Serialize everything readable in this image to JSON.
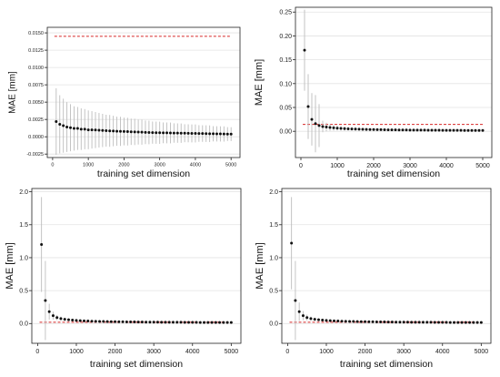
{
  "chart_data": [
    {
      "type": "scatter",
      "xlabel": "training set dimension",
      "ylabel": "MAE [mm]",
      "xlim": [
        -150,
        5250
      ],
      "ylim": [
        -0.003,
        0.0158
      ],
      "xticks": [
        0,
        1000,
        2000,
        3000,
        4000,
        5000
      ],
      "xtick_labels": [
        "0",
        "1000",
        "2000",
        "3000",
        "4000",
        "5000"
      ],
      "yticks": [
        -0.0025,
        0,
        0.0025,
        0.005,
        0.0075,
        0.01,
        0.0125,
        0.015
      ],
      "ytick_labels": [
        "-0.0025",
        "0.0000",
        "0.0025",
        "0.0050",
        "0.0075",
        "0.0100",
        "0.0125",
        "0.0150"
      ],
      "grid": "horizontal",
      "reference_line": 0.0145,
      "colors": {
        "points": "#111111",
        "errorbars": "#bdbdbd",
        "reference": "#d62728"
      },
      "series": [
        {
          "x": [
            100,
            200,
            300,
            400,
            500,
            600,
            700,
            800,
            900,
            1000,
            1100,
            1200,
            1300,
            1400,
            1500,
            1600,
            1700,
            1800,
            1900,
            2000,
            2100,
            2200,
            2300,
            2400,
            2500,
            2600,
            2700,
            2800,
            2900,
            3000,
            3100,
            3200,
            3300,
            3400,
            3500,
            3600,
            3700,
            3800,
            3900,
            4000,
            4100,
            4200,
            4300,
            4400,
            4500,
            4600,
            4700,
            4800,
            4900,
            5000
          ],
          "y": [
            0.0022,
            0.0018,
            0.0016,
            0.0014,
            0.0013,
            0.0012,
            0.0012,
            0.0011,
            0.0011,
            0.001,
            0.001,
            0.00097,
            0.00094,
            0.00091,
            0.00088,
            0.00085,
            0.00083,
            0.0008,
            0.00078,
            0.00076,
            0.00074,
            0.00072,
            0.0007,
            0.00068,
            0.00066,
            0.00064,
            0.00062,
            0.0006,
            0.00059,
            0.00058,
            0.00057,
            0.00056,
            0.00055,
            0.00054,
            0.00053,
            0.00052,
            0.00051,
            0.0005,
            0.00049,
            0.00048,
            0.00047,
            0.00046,
            0.00045,
            0.00044,
            0.00043,
            0.00042,
            0.00041,
            0.0004,
            0.00039,
            0.00038
          ],
          "err": [
            0.0048,
            0.0042,
            0.0039,
            0.0036,
            0.0034,
            0.0032,
            0.0031,
            0.003,
            0.0029,
            0.0028,
            0.0027,
            0.0026,
            0.0025,
            0.0024,
            0.0023,
            0.0023,
            0.0022,
            0.0021,
            0.0021,
            0.002,
            0.002,
            0.0019,
            0.0019,
            0.0018,
            0.0018,
            0.0017,
            0.0017,
            0.0016,
            0.0016,
            0.0016,
            0.0015,
            0.0015,
            0.0015,
            0.0014,
            0.0014,
            0.0014,
            0.0013,
            0.0013,
            0.0013,
            0.0013,
            0.0012,
            0.0012,
            0.0012,
            0.0012,
            0.0011,
            0.0011,
            0.0011,
            0.0011,
            0.001,
            0.001
          ]
        }
      ]
    },
    {
      "type": "scatter",
      "xlabel": "training set dimension",
      "ylabel": "MAE [mm]",
      "xlim": [
        -150,
        5250
      ],
      "ylim": [
        -0.055,
        0.26
      ],
      "xticks": [
        0,
        1000,
        2000,
        3000,
        4000,
        5000
      ],
      "xtick_labels": [
        "0",
        "1000",
        "2000",
        "3000",
        "4000",
        "5000"
      ],
      "yticks": [
        0,
        0.05,
        0.1,
        0.15,
        0.2,
        0.25
      ],
      "ytick_labels": [
        "0.00",
        "0.05",
        "0.10",
        "0.15",
        "0.20",
        "0.25"
      ],
      "grid": "horizontal",
      "reference_line": 0.0145,
      "colors": {
        "points": "#111111",
        "errorbars": "#bdbdbd",
        "reference": "#d62728"
      },
      "series": [
        {
          "x": [
            100,
            200,
            300,
            400,
            500,
            600,
            700,
            800,
            900,
            1000,
            1100,
            1200,
            1300,
            1400,
            1500,
            1600,
            1700,
            1800,
            1900,
            2000,
            2100,
            2200,
            2300,
            2400,
            2500,
            2600,
            2700,
            2800,
            2900,
            3000,
            3100,
            3200,
            3300,
            3400,
            3500,
            3600,
            3700,
            3800,
            3900,
            4000,
            4100,
            4200,
            4300,
            4400,
            4500,
            4600,
            4700,
            4800,
            4900,
            5000
          ],
          "y": [
            0.17,
            0.052,
            0.025,
            0.016,
            0.012,
            0.01,
            0.009,
            0.008,
            0.0072,
            0.0065,
            0.006,
            0.0056,
            0.0052,
            0.0049,
            0.0046,
            0.0044,
            0.0042,
            0.004,
            0.0038,
            0.0036,
            0.0035,
            0.0034,
            0.0032,
            0.0031,
            0.003,
            0.0029,
            0.0028,
            0.0027,
            0.0027,
            0.0026,
            0.0025,
            0.0025,
            0.0024,
            0.0024,
            0.0023,
            0.0023,
            0.0022,
            0.0022,
            0.0021,
            0.0021,
            0.0021,
            0.002,
            0.002,
            0.002,
            0.0019,
            0.0019,
            0.0019,
            0.0018,
            0.0018,
            0.0018
          ],
          "err": [
            0.085,
            0.068,
            0.055,
            0.06,
            0.045,
            0.012,
            0.009,
            0.007,
            0.006,
            0.005,
            0.0045,
            0.004,
            0.0037,
            0.0034,
            0.0032,
            0.003,
            0.0028,
            0.0027,
            0.0026,
            0.0025,
            0.0024,
            0.0023,
            0.0022,
            0.0021,
            0.0021,
            0.002,
            0.002,
            0.0019,
            0.0019,
            0.0018,
            0.0018,
            0.0017,
            0.0017,
            0.0017,
            0.0016,
            0.0016,
            0.0016,
            0.0015,
            0.0015,
            0.0015,
            0.0015,
            0.0014,
            0.0014,
            0.0014,
            0.0014,
            0.0013,
            0.0013,
            0.0013,
            0.0013,
            0.0013
          ]
        }
      ]
    },
    {
      "type": "scatter",
      "xlabel": "training set dimension",
      "ylabel": "MAE [mm]",
      "xlim": [
        -150,
        5250
      ],
      "ylim": [
        -0.3,
        2.05
      ],
      "xticks": [
        0,
        1000,
        2000,
        3000,
        4000,
        5000
      ],
      "xtick_labels": [
        "0",
        "1000",
        "2000",
        "3000",
        "4000",
        "5000"
      ],
      "yticks": [
        0,
        0.5,
        1,
        1.5,
        2
      ],
      "ytick_labels": [
        "0.0",
        "0.5",
        "1.0",
        "1.5",
        "2.0"
      ],
      "grid": "horizontal",
      "reference_line": 0.02,
      "colors": {
        "points": "#111111",
        "errorbars": "#bdbdbd",
        "reference": "#d62728"
      },
      "series": [
        {
          "x": [
            100,
            200,
            300,
            400,
            500,
            600,
            700,
            800,
            900,
            1000,
            1100,
            1200,
            1300,
            1400,
            1500,
            1600,
            1700,
            1800,
            1900,
            2000,
            2100,
            2200,
            2300,
            2400,
            2500,
            2600,
            2700,
            2800,
            2900,
            3000,
            3100,
            3200,
            3300,
            3400,
            3500,
            3600,
            3700,
            3800,
            3900,
            4000,
            4100,
            4200,
            4300,
            4400,
            4500,
            4600,
            4700,
            4800,
            4900,
            5000
          ],
          "y": [
            1.2,
            0.35,
            0.18,
            0.12,
            0.09,
            0.075,
            0.065,
            0.058,
            0.052,
            0.048,
            0.044,
            0.041,
            0.038,
            0.036,
            0.034,
            0.032,
            0.031,
            0.03,
            0.029,
            0.028,
            0.027,
            0.026,
            0.025,
            0.025,
            0.024,
            0.023,
            0.023,
            0.022,
            0.022,
            0.021,
            0.021,
            0.02,
            0.02,
            0.02,
            0.019,
            0.019,
            0.019,
            0.018,
            0.018,
            0.018,
            0.018,
            0.017,
            0.017,
            0.017,
            0.017,
            0.016,
            0.016,
            0.016,
            0.016,
            0.016
          ],
          "err": [
            0.72,
            0.6,
            0.12,
            0.06,
            0.04,
            0.03,
            0.025,
            0.022,
            0.02,
            0.018,
            0.016,
            0.015,
            0.014,
            0.013,
            0.012,
            0.012,
            0.011,
            0.011,
            0.01,
            0.01,
            0.01,
            0.009,
            0.009,
            0.009,
            0.009,
            0.008,
            0.008,
            0.008,
            0.008,
            0.008,
            0.007,
            0.007,
            0.007,
            0.007,
            0.007,
            0.007,
            0.006,
            0.006,
            0.006,
            0.006,
            0.006,
            0.006,
            0.006,
            0.006,
            0.005,
            0.005,
            0.005,
            0.005,
            0.005,
            0.005
          ]
        }
      ]
    },
    {
      "type": "scatter",
      "xlabel": "training set dimension",
      "ylabel": "MAE [mm]",
      "xlim": [
        -150,
        5250
      ],
      "ylim": [
        -0.3,
        2.05
      ],
      "xticks": [
        0,
        1000,
        2000,
        3000,
        4000,
        5000
      ],
      "xtick_labels": [
        "0",
        "1000",
        "2000",
        "3000",
        "4000",
        "5000"
      ],
      "yticks": [
        0,
        0.5,
        1,
        1.5,
        2
      ],
      "ytick_labels": [
        "0.0",
        "0.5",
        "1.0",
        "1.5",
        "2.0"
      ],
      "grid": "horizontal",
      "reference_line": 0.02,
      "colors": {
        "points": "#111111",
        "errorbars": "#bdbdbd",
        "reference": "#d62728"
      },
      "series": [
        {
          "x": [
            100,
            200,
            300,
            400,
            500,
            600,
            700,
            800,
            900,
            1000,
            1100,
            1200,
            1300,
            1400,
            1500,
            1600,
            1700,
            1800,
            1900,
            2000,
            2100,
            2200,
            2300,
            2400,
            2500,
            2600,
            2700,
            2800,
            2900,
            3000,
            3100,
            3200,
            3300,
            3400,
            3500,
            3600,
            3700,
            3800,
            3900,
            4000,
            4100,
            4200,
            4300,
            4400,
            4500,
            4600,
            4700,
            4800,
            4900,
            5000
          ],
          "y": [
            1.22,
            0.35,
            0.18,
            0.12,
            0.09,
            0.075,
            0.065,
            0.058,
            0.052,
            0.048,
            0.044,
            0.041,
            0.038,
            0.036,
            0.034,
            0.032,
            0.031,
            0.03,
            0.029,
            0.028,
            0.027,
            0.026,
            0.025,
            0.025,
            0.024,
            0.023,
            0.023,
            0.022,
            0.022,
            0.021,
            0.021,
            0.02,
            0.02,
            0.02,
            0.019,
            0.019,
            0.019,
            0.018,
            0.018,
            0.018,
            0.018,
            0.017,
            0.017,
            0.017,
            0.017,
            0.016,
            0.016,
            0.016,
            0.016,
            0.016
          ],
          "err": [
            0.7,
            0.6,
            0.14,
            0.07,
            0.045,
            0.03,
            0.025,
            0.022,
            0.02,
            0.018,
            0.016,
            0.015,
            0.014,
            0.013,
            0.012,
            0.012,
            0.011,
            0.011,
            0.01,
            0.01,
            0.01,
            0.009,
            0.009,
            0.009,
            0.009,
            0.008,
            0.008,
            0.008,
            0.008,
            0.008,
            0.007,
            0.007,
            0.007,
            0.007,
            0.007,
            0.007,
            0.006,
            0.006,
            0.006,
            0.006,
            0.006,
            0.006,
            0.006,
            0.006,
            0.005,
            0.005,
            0.005,
            0.005,
            0.005,
            0.005
          ]
        }
      ]
    }
  ]
}
